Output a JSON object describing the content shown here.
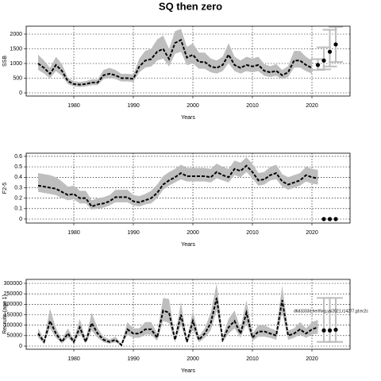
{
  "chart_data": [
    {
      "type": "line",
      "title": "SQ then zero",
      "ylabel": "SSB",
      "xlabel": "Years",
      "color": "#000000",
      "band_color": "#bebebe",
      "grid": true,
      "x": [
        1974,
        1975,
        1976,
        1977,
        1978,
        1979,
        1980,
        1981,
        1982,
        1983,
        1984,
        1985,
        1986,
        1987,
        1988,
        1989,
        1990,
        1991,
        1992,
        1993,
        1994,
        1995,
        1996,
        1997,
        1998,
        1999,
        2000,
        2001,
        2002,
        2003,
        2004,
        2005,
        2006,
        2007,
        2008,
        2009,
        2010,
        2011,
        2012,
        2013,
        2014,
        2015,
        2016,
        2017,
        2018,
        2019,
        2020
      ],
      "values": [
        1000,
        850,
        650,
        950,
        750,
        400,
        300,
        280,
        300,
        350,
        350,
        600,
        650,
        600,
        500,
        500,
        480,
        900,
        1100,
        1150,
        1400,
        1500,
        1150,
        1700,
        1800,
        1200,
        1300,
        1050,
        1050,
        900,
        850,
        950,
        1300,
        950,
        850,
        950,
        900,
        950,
        750,
        700,
        750,
        600,
        700,
        1100,
        1100,
        950,
        850
      ],
      "lower": [
        780,
        660,
        500,
        740,
        580,
        300,
        220,
        200,
        220,
        260,
        260,
        470,
        510,
        470,
        390,
        390,
        370,
        700,
        860,
        900,
        1100,
        1170,
        900,
        1330,
        1400,
        940,
        1010,
        820,
        820,
        700,
        660,
        740,
        1010,
        740,
        660,
        740,
        700,
        740,
        580,
        540,
        580,
        470,
        540,
        860,
        860,
        740,
        660
      ],
      "upper": [
        1300,
        1100,
        850,
        1230,
        980,
        520,
        400,
        370,
        400,
        460,
        460,
        780,
        850,
        780,
        650,
        650,
        630,
        1170,
        1430,
        1500,
        1820,
        1950,
        1500,
        2100,
        2180,
        1560,
        1690,
        1370,
        1370,
        1170,
        1100,
        1230,
        1690,
        1230,
        1100,
        1230,
        1170,
        1230,
        980,
        910,
        980,
        780,
        910,
        1430,
        1430,
        1230,
        1100
      ],
      "projection": {
        "x": [
          2021,
          2022,
          2023,
          2024
        ],
        "values": [
          950,
          1100,
          1400,
          1650
        ],
        "lower": [
          780,
          800,
          900,
          1050
        ],
        "upper": [
          1150,
          1550,
          2150,
          2250
        ]
      },
      "xlim": [
        1972,
        2026.4
      ],
      "xticks": [
        1980,
        1990,
        2000,
        2010,
        2020
      ],
      "ylim": [
        -108,
        2270
      ],
      "yticks": [
        0,
        500,
        1000,
        1500,
        2000
      ]
    },
    {
      "type": "line",
      "ylabel": "F2-5",
      "xlabel": "Years",
      "color": "#000000",
      "band_color": "#bebebe",
      "grid": true,
      "x": [
        1974,
        1975,
        1976,
        1977,
        1978,
        1979,
        1980,
        1981,
        1982,
        1983,
        1984,
        1985,
        1986,
        1987,
        1988,
        1989,
        1990,
        1991,
        1992,
        1993,
        1994,
        1995,
        1996,
        1997,
        1998,
        1999,
        2000,
        2001,
        2002,
        2003,
        2004,
        2005,
        2006,
        2007,
        2008,
        2009,
        2010,
        2011,
        2012,
        2013,
        2014,
        2015,
        2016,
        2017,
        2018,
        2019,
        2020,
        2021
      ],
      "values": [
        0.32,
        0.31,
        0.3,
        0.29,
        0.26,
        0.23,
        0.24,
        0.2,
        0.2,
        0.12,
        0.14,
        0.15,
        0.17,
        0.21,
        0.21,
        0.21,
        0.17,
        0.16,
        0.18,
        0.2,
        0.25,
        0.33,
        0.37,
        0.4,
        0.44,
        0.41,
        0.41,
        0.41,
        0.41,
        0.4,
        0.45,
        0.42,
        0.4,
        0.48,
        0.46,
        0.51,
        0.45,
        0.37,
        0.38,
        0.42,
        0.44,
        0.36,
        0.33,
        0.35,
        0.37,
        0.42,
        0.4,
        0.39
      ],
      "lower": [
        0.26,
        0.25,
        0.24,
        0.23,
        0.2,
        0.18,
        0.19,
        0.15,
        0.15,
        0.09,
        0.1,
        0.11,
        0.13,
        0.16,
        0.16,
        0.16,
        0.13,
        0.12,
        0.14,
        0.15,
        0.2,
        0.28,
        0.32,
        0.35,
        0.38,
        0.36,
        0.36,
        0.36,
        0.36,
        0.35,
        0.39,
        0.37,
        0.35,
        0.42,
        0.4,
        0.45,
        0.39,
        0.32,
        0.33,
        0.37,
        0.38,
        0.31,
        0.28,
        0.3,
        0.32,
        0.36,
        0.34,
        0.33
      ],
      "upper": [
        0.44,
        0.43,
        0.42,
        0.4,
        0.36,
        0.31,
        0.32,
        0.27,
        0.27,
        0.18,
        0.2,
        0.21,
        0.23,
        0.28,
        0.28,
        0.28,
        0.23,
        0.22,
        0.24,
        0.27,
        0.33,
        0.41,
        0.45,
        0.48,
        0.52,
        0.49,
        0.49,
        0.49,
        0.49,
        0.48,
        0.53,
        0.5,
        0.48,
        0.56,
        0.54,
        0.59,
        0.53,
        0.44,
        0.45,
        0.5,
        0.52,
        0.43,
        0.4,
        0.42,
        0.44,
        0.5,
        0.48,
        0.47
      ],
      "projection": {
        "x": [
          2022,
          2023,
          2024
        ],
        "values": [
          0,
          0,
          0
        ]
      },
      "xlim": [
        1972,
        2026.4
      ],
      "xticks": [
        1980,
        1990,
        2000,
        2010,
        2020
      ],
      "ylim": [
        -0.038,
        0.63
      ],
      "yticks": [
        0.0,
        0.1,
        0.2,
        0.3,
        0.4,
        0.5,
        0.6
      ]
    },
    {
      "type": "line",
      "ylabel": "Recruits (age 1)",
      "xlabel": "Years",
      "color": "#000000",
      "band_color": "#bebebe",
      "grid": true,
      "annotation": "d6d3333d,hertforg,ysi2021,r14277,gt:ec2c",
      "x": [
        1974,
        1975,
        1976,
        1977,
        1978,
        1979,
        1980,
        1981,
        1982,
        1983,
        1984,
        1985,
        1986,
        1987,
        1988,
        1989,
        1990,
        1991,
        1992,
        1993,
        1994,
        1995,
        1996,
        1997,
        1998,
        1999,
        2000,
        2001,
        2002,
        2003,
        2004,
        2005,
        2006,
        2007,
        2008,
        2009,
        2010,
        2011,
        2012,
        2013,
        2014,
        2015,
        2016,
        2017,
        2018,
        2019,
        2020,
        2021
      ],
      "values": [
        60000,
        20000,
        120000,
        60000,
        20000,
        60000,
        20000,
        90000,
        20000,
        110000,
        60000,
        30000,
        20000,
        30000,
        5000,
        80000,
        60000,
        60000,
        80000,
        80000,
        40000,
        170000,
        160000,
        30000,
        150000,
        20000,
        120000,
        30000,
        60000,
        110000,
        230000,
        30000,
        90000,
        120000,
        60000,
        160000,
        40000,
        70000,
        70000,
        60000,
        50000,
        220000,
        50000,
        60000,
        80000,
        60000,
        80000,
        90000
      ],
      "lower": [
        40000,
        12000,
        85000,
        40000,
        12000,
        40000,
        12000,
        60000,
        12000,
        75000,
        40000,
        18000,
        12000,
        18000,
        2000,
        55000,
        40000,
        40000,
        55000,
        55000,
        25000,
        120000,
        110000,
        18000,
        100000,
        12000,
        80000,
        18000,
        40000,
        75000,
        170000,
        18000,
        60000,
        85000,
        40000,
        110000,
        25000,
        45000,
        45000,
        40000,
        30000,
        160000,
        30000,
        40000,
        55000,
        40000,
        55000,
        60000
      ],
      "upper": [
        85000,
        32000,
        180000,
        85000,
        32000,
        85000,
        32000,
        130000,
        32000,
        160000,
        85000,
        45000,
        32000,
        45000,
        10000,
        115000,
        85000,
        85000,
        115000,
        115000,
        60000,
        230000,
        225000,
        45000,
        210000,
        32000,
        170000,
        45000,
        85000,
        160000,
        300000,
        45000,
        130000,
        170000,
        85000,
        220000,
        60000,
        100000,
        100000,
        85000,
        75000,
        290000,
        75000,
        85000,
        115000,
        85000,
        115000,
        125000
      ],
      "projection": {
        "x": [
          2022,
          2023,
          2024
        ],
        "values": [
          75000,
          75000,
          78000
        ],
        "lower": [
          20000,
          20000,
          20000
        ],
        "upper": [
          230000,
          230000,
          230000
        ]
      },
      "xlim": [
        1972,
        2026.4
      ],
      "xticks": [
        1980,
        1990,
        2000,
        2010,
        2020
      ],
      "ylim": [
        -15200,
        319000
      ],
      "yticks": [
        0,
        50000,
        100000,
        150000,
        200000,
        250000,
        300000
      ]
    }
  ]
}
